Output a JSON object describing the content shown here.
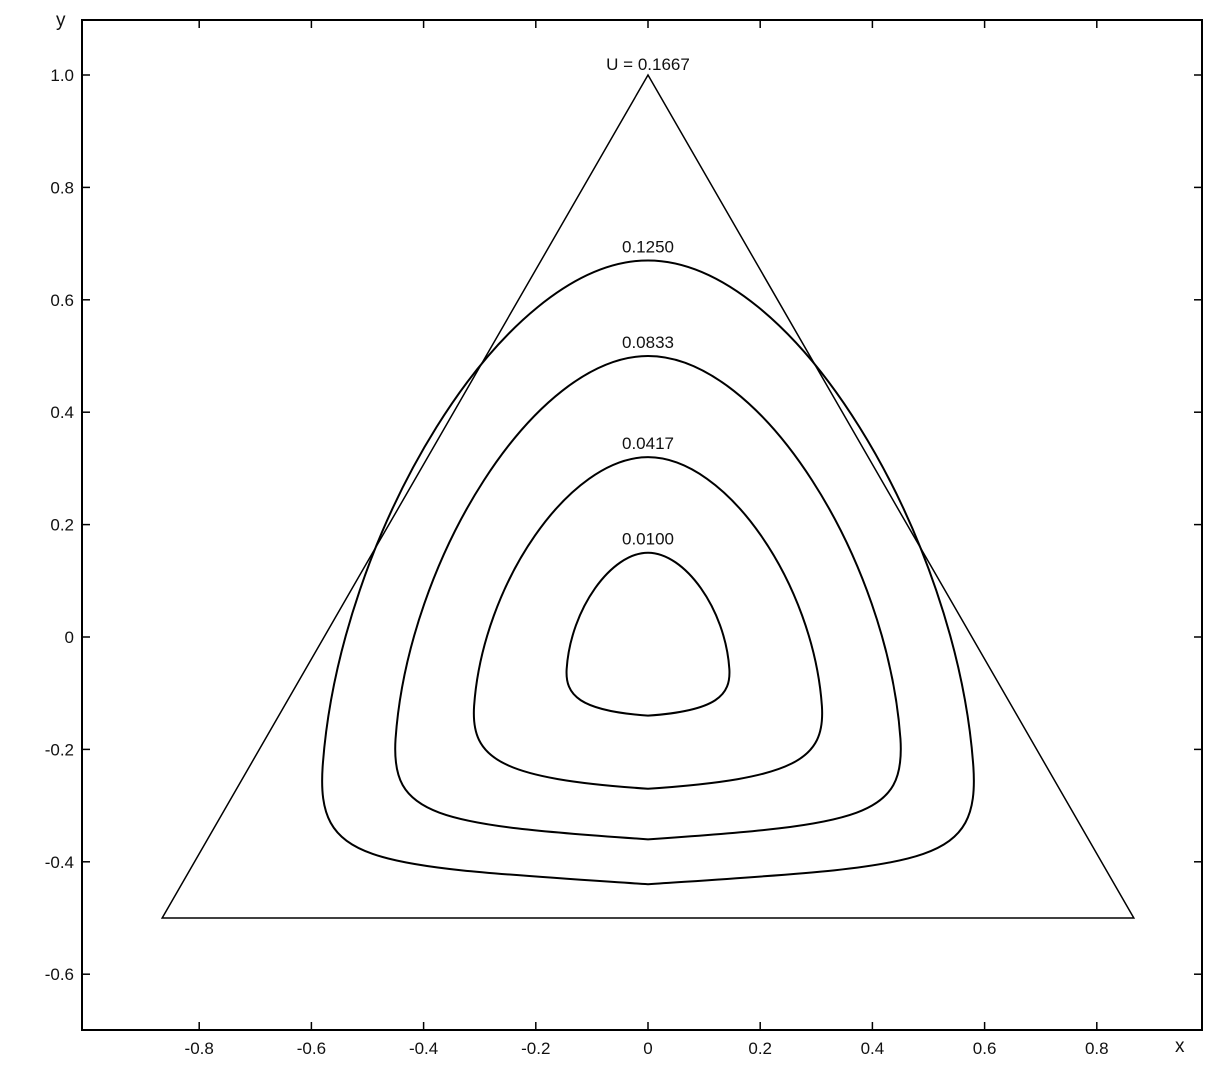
{
  "chart_data": {
    "type": "contour",
    "xlabel": "x",
    "ylabel": "y",
    "xlim": [
      -1.0,
      1.0
    ],
    "ylim": [
      -0.7,
      1.1
    ],
    "x_ticks": [
      {
        "value": -0.8,
        "label": "-0.8"
      },
      {
        "value": -0.6,
        "label": "-0.6"
      },
      {
        "value": -0.4,
        "label": "-0.4"
      },
      {
        "value": -0.2,
        "label": "-0.2"
      },
      {
        "value": 0,
        "label": "0"
      },
      {
        "value": 0.2,
        "label": "0.2"
      },
      {
        "value": 0.4,
        "label": "0.4"
      },
      {
        "value": 0.6,
        "label": "0.6"
      },
      {
        "value": 0.8,
        "label": "0.8"
      }
    ],
    "y_ticks": [
      {
        "value": 1.0,
        "label": "1.0"
      },
      {
        "value": 0.8,
        "label": "0.8"
      },
      {
        "value": 0.6,
        "label": "0.6"
      },
      {
        "value": 0.4,
        "label": "0.4"
      },
      {
        "value": 0.2,
        "label": "0.2"
      },
      {
        "value": 0,
        "label": "0"
      },
      {
        "value": -0.2,
        "label": "-0.2"
      },
      {
        "value": -0.4,
        "label": "-0.4"
      },
      {
        "value": -0.6,
        "label": "-0.6"
      }
    ],
    "grid": false,
    "boundary": {
      "label": "U = 0.1667",
      "vertices": [
        [
          0,
          1.0
        ],
        [
          -0.866,
          -0.5
        ],
        [
          0.866,
          -0.5
        ]
      ]
    },
    "contours": [
      {
        "label": "0.1250",
        "value": 0.125,
        "top_y": 0.67,
        "bottom_y": -0.44,
        "corner_x": 0.58,
        "corner_y": -0.32
      },
      {
        "label": "0.0833",
        "value": 0.0833,
        "top_y": 0.5,
        "bottom_y": -0.36,
        "corner_x": 0.45,
        "corner_y": -0.25
      },
      {
        "label": "0.0417",
        "value": 0.0417,
        "top_y": 0.32,
        "bottom_y": -0.27,
        "corner_x": 0.31,
        "corner_y": -0.17
      },
      {
        "label": "0.0100",
        "value": 0.01,
        "top_y": 0.15,
        "bottom_y": -0.14,
        "corner_x": 0.145,
        "corner_y": -0.08
      }
    ]
  }
}
